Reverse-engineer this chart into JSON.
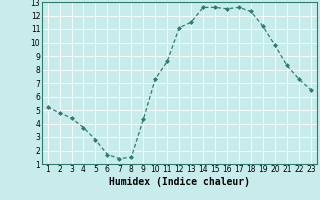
{
  "x": [
    1,
    2,
    3,
    4,
    5,
    6,
    7,
    8,
    9,
    10,
    11,
    12,
    13,
    14,
    15,
    16,
    17,
    18,
    19,
    20,
    21,
    22,
    23
  ],
  "y": [
    5.2,
    4.8,
    4.4,
    3.7,
    2.8,
    1.7,
    1.4,
    1.5,
    4.3,
    7.3,
    8.6,
    11.1,
    11.5,
    12.6,
    12.6,
    12.5,
    12.6,
    12.3,
    11.2,
    9.8,
    8.3,
    7.3,
    6.5
  ],
  "line_color": "#2d7d6f",
  "marker": "D",
  "markersize": 2.0,
  "linewidth": 0.9,
  "xlabel": "Humidex (Indice chaleur)",
  "xlabel_fontsize": 7,
  "xlabel_fontweight": "bold",
  "background_color": "#c8ecec",
  "grid_color": "#ffffff",
  "xlim": [
    0.5,
    23.5
  ],
  "ylim": [
    1,
    13
  ],
  "xticks": [
    1,
    2,
    3,
    4,
    5,
    6,
    7,
    8,
    9,
    10,
    11,
    12,
    13,
    14,
    15,
    16,
    17,
    18,
    19,
    20,
    21,
    22,
    23
  ],
  "yticks": [
    1,
    2,
    3,
    4,
    5,
    6,
    7,
    8,
    9,
    10,
    11,
    12,
    13
  ],
  "tick_fontsize": 5.5,
  "spine_color": "#2d7d6f"
}
